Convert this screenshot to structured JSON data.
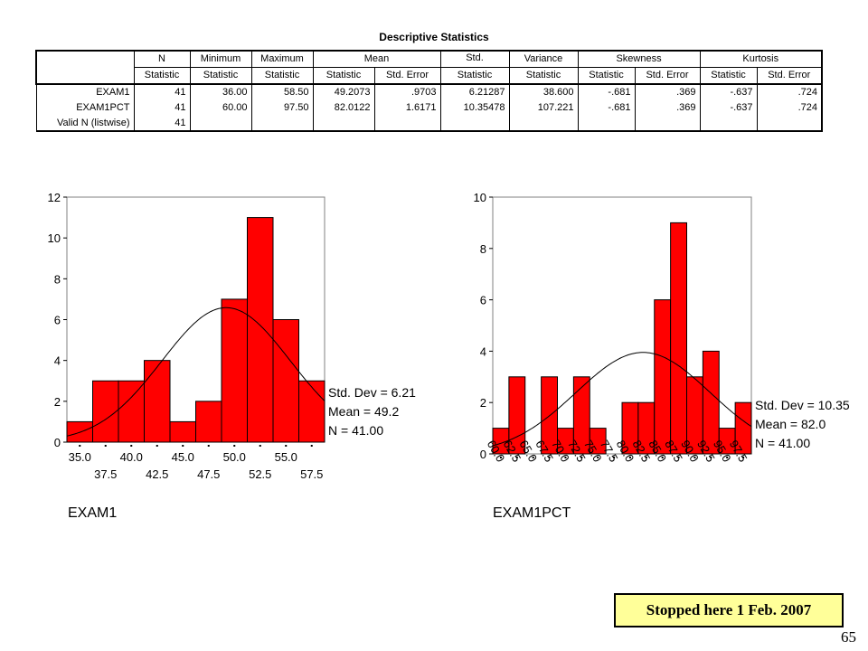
{
  "table": {
    "title": "Descriptive Statistics",
    "group_headers": [
      "N",
      "Minimum",
      "Maximum",
      "Mean",
      "Std.",
      "Variance",
      "Skewness",
      "Kurtosis"
    ],
    "sub_headers": [
      "Statistic",
      "Statistic",
      "Statistic",
      "Statistic",
      "Std. Error",
      "Statistic",
      "Statistic",
      "Statistic",
      "Std. Error",
      "Statistic",
      "Std. Error"
    ],
    "rows": [
      {
        "label": "EXAM1",
        "values": [
          "41",
          "36.00",
          "58.50",
          "49.2073",
          ".9703",
          "6.21287",
          "38.600",
          "-.681",
          ".369",
          "-.637",
          ".724"
        ]
      },
      {
        "label": "EXAM1PCT",
        "values": [
          "41",
          "60.00",
          "97.50",
          "82.0122",
          "1.6171",
          "10.35478",
          "107.221",
          "-.681",
          ".369",
          "-.637",
          ".724"
        ]
      },
      {
        "label": "Valid N (listwise)",
        "values": [
          "41",
          "",
          "",
          "",
          "",
          "",
          "",
          "",
          "",
          "",
          ""
        ]
      }
    ]
  },
  "chart_data": [
    {
      "type": "bar",
      "title": "",
      "xlabel": "EXAM1",
      "ylabel": "",
      "categories": [
        "35.0",
        "37.5",
        "40.0",
        "42.5",
        "45.0",
        "47.5",
        "50.0",
        "52.5",
        "55.0",
        "57.5"
      ],
      "values": [
        1,
        3,
        3,
        4,
        1,
        2,
        7,
        11,
        6,
        3
      ],
      "ylim": [
        0,
        12
      ],
      "yticks": [
        "0",
        "2",
        "4",
        "6",
        "8",
        "10",
        "12"
      ],
      "xtick_labels_top": [
        "35.0",
        "40.0",
        "45.0",
        "50.0",
        "55.0"
      ],
      "xtick_labels_bottom": [
        "37.5",
        "42.5",
        "47.5",
        "52.5",
        "57.5"
      ],
      "normal_curve": {
        "mean": 49.2,
        "std": 6.21,
        "n": 41,
        "bin_width": 2.5
      },
      "annotations": [
        "Std. Dev = 6.21",
        "Mean = 49.2",
        "N = 41.00"
      ],
      "bar_color": "#ff0000"
    },
    {
      "type": "bar",
      "title": "",
      "xlabel": "EXAM1PCT",
      "ylabel": "",
      "categories": [
        "60.0",
        "62.5",
        "65.0",
        "67.5",
        "70.0",
        "72.5",
        "75.0",
        "77.5",
        "80.0",
        "82.5",
        "85.0",
        "87.5",
        "90.0",
        "92.5",
        "95.0",
        "97.5"
      ],
      "values": [
        1,
        3,
        0,
        3,
        1,
        3,
        1,
        0,
        2,
        2,
        6,
        9,
        3,
        4,
        1,
        2
      ],
      "ylim": [
        0,
        10
      ],
      "yticks": [
        "0",
        "2",
        "4",
        "6",
        "8",
        "10"
      ],
      "normal_curve": {
        "mean": 82.0,
        "std": 10.35,
        "n": 41,
        "bin_width": 2.5
      },
      "annotations": [
        "Std. Dev = 10.35",
        "Mean = 82.0",
        "N = 41.00"
      ],
      "bar_color": "#ff0000"
    }
  ],
  "note": "Stopped here 1 Feb. 2007",
  "page_number": "65"
}
